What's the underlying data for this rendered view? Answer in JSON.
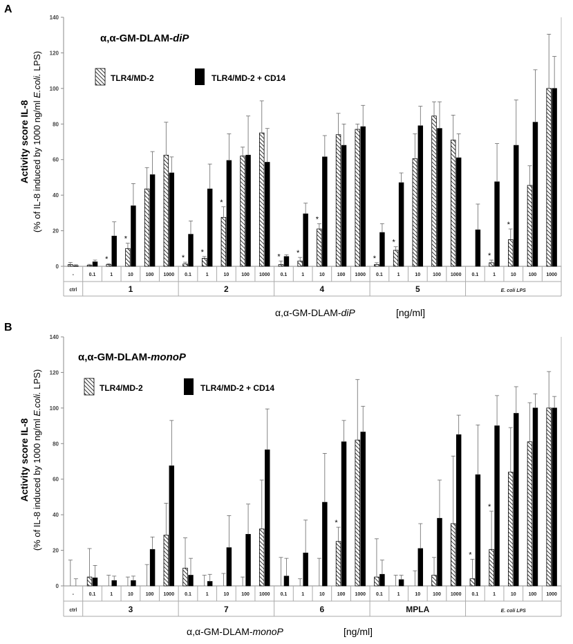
{
  "chart_data": [
    {
      "type": "bar",
      "panel": "A",
      "title": "α,α-GM-DLAM-diP",
      "title_plain": "α,α-GM-DLAM-",
      "title_italic": "diP",
      "ylabel_line1": "Activity score IL-8",
      "ylabel_line2_pre": "(% of IL-8 induced by 1000 ng/ml ",
      "ylabel_line2_ital": "E.coli.",
      "ylabel_line2_post": " LPS)",
      "xlabel_plain": "α,α-GM-DLAM-",
      "xlabel_italic": "diP",
      "xlabel_unit": "[ng/ml]",
      "ylim": [
        0,
        140
      ],
      "yticks": [
        "0",
        "20",
        "40",
        "60",
        "80",
        "100",
        "120",
        "140"
      ],
      "legend": [
        "TLR4/MD-2",
        "TLR4/MD-2 + CD14"
      ],
      "control": {
        "label": "-",
        "group": "ctrl",
        "values": [
          1,
          0.3
        ],
        "errors": [
          1.2,
          0.6
        ]
      },
      "groups": [
        {
          "label": "1",
          "italic": false,
          "doses": [
            "0.1",
            "1",
            "10",
            "100",
            "1000"
          ],
          "md2": [
            0.6,
            1,
            10,
            43.5,
            62.5
          ],
          "md2_err": [
            0.5,
            0.5,
            3,
            12,
            18.5
          ],
          "cd14": [
            2.5,
            17,
            34,
            51.5,
            52.5
          ],
          "cd14_err": [
            1,
            8,
            12.5,
            13,
            9
          ],
          "stars": [
            false,
            true,
            true,
            false,
            false
          ]
        },
        {
          "label": "2",
          "italic": false,
          "doses": [
            "0.1",
            "1",
            "10",
            "100",
            "1000"
          ],
          "md2": [
            1.3,
            4.5,
            27.5,
            62,
            75
          ],
          "md2_err": [
            1,
            1,
            6,
            5,
            18
          ],
          "cd14": [
            18,
            43.5,
            59.5,
            62.5,
            58.5
          ],
          "cd14_err": [
            7.5,
            14,
            15,
            22,
            19
          ],
          "stars": [
            true,
            true,
            true,
            false,
            false
          ]
        },
        {
          "label": "4",
          "italic": false,
          "doses": [
            "0.1",
            "1",
            "10",
            "100",
            "1000"
          ],
          "md2": [
            1,
            3,
            21,
            74,
            77
          ],
          "md2_err": [
            2,
            2,
            3,
            12,
            3
          ],
          "cd14": [
            5.5,
            29.5,
            61.5,
            68,
            78.5
          ],
          "cd14_err": [
            1,
            6,
            12,
            12,
            12
          ],
          "stars": [
            true,
            true,
            true,
            false,
            false
          ]
        },
        {
          "label": "5",
          "italic": false,
          "doses": [
            "0.1",
            "1",
            "10",
            "100",
            "1000"
          ],
          "md2": [
            1,
            9,
            60.5,
            84.5,
            71
          ],
          "md2_err": [
            1,
            2,
            14,
            8,
            14
          ],
          "cd14": [
            19,
            47,
            79,
            77.5,
            61
          ],
          "cd14_err": [
            5,
            5.5,
            11,
            15,
            13.5
          ],
          "stars": [
            true,
            true,
            false,
            false,
            false
          ]
        },
        {
          "label": "E. coli  LPS",
          "italic": true,
          "doses": [
            "0.1",
            "1",
            "10",
            "100",
            "1000"
          ],
          "md2": [
            0,
            2,
            15,
            45.5,
            100
          ],
          "md2_err": [
            0,
            1.5,
            6,
            11,
            30.5
          ],
          "cd14": [
            20.5,
            47.5,
            68,
            81,
            100
          ],
          "cd14_err": [
            14.5,
            21.5,
            25.5,
            29.5,
            18
          ],
          "stars": [
            false,
            true,
            true,
            false,
            false
          ]
        }
      ]
    },
    {
      "type": "bar",
      "panel": "B",
      "title": "α,α-GM-DLAM-monoP",
      "title_plain": "α,α-GM-DLAM-",
      "title_italic": "monoP",
      "ylabel_line1": "Activity score IL-8",
      "ylabel_line2_pre": "(% of IL-8 induced by 1000 ng/ml ",
      "ylabel_line2_ital": "E.coli.",
      "ylabel_line2_post": " LPS)",
      "xlabel_plain": "α,α-GM-DLAM-",
      "xlabel_italic": "monoP",
      "xlabel_unit": "[ng/ml]",
      "ylim": [
        0,
        140
      ],
      "yticks": [
        "0",
        "20",
        "40",
        "60",
        "80",
        "100",
        "120",
        "140"
      ],
      "legend": [
        "TLR4/MD-2",
        "TLR4/MD-2 + CD14"
      ],
      "control": {
        "label": "-",
        "group": "ctrl",
        "values": [
          0,
          0
        ],
        "errors": [
          14.5,
          4
        ]
      },
      "groups": [
        {
          "label": "3",
          "italic": false,
          "doses": [
            "0.1",
            "1",
            "10",
            "100",
            "1000"
          ],
          "md2": [
            5,
            0,
            0,
            0,
            28.5
          ],
          "md2_err": [
            16,
            6,
            5,
            12,
            18
          ],
          "cd14": [
            4.5,
            3,
            3,
            20.5,
            67.5
          ],
          "cd14_err": [
            7,
            2.5,
            2.5,
            7,
            25.5
          ],
          "stars": [
            false,
            false,
            false,
            false,
            false
          ]
        },
        {
          "label": "7",
          "italic": false,
          "doses": [
            "0.1",
            "1",
            "10",
            "100",
            "1000"
          ],
          "md2": [
            10,
            0,
            0,
            0,
            32
          ],
          "md2_err": [
            17,
            6,
            7,
            5,
            27.5
          ],
          "cd14": [
            6,
            2.5,
            21.5,
            29,
            76.5
          ],
          "cd14_err": [
            9.5,
            4,
            18,
            17,
            23
          ],
          "stars": [
            false,
            false,
            false,
            false,
            false
          ]
        },
        {
          "label": "6",
          "italic": false,
          "doses": [
            "0.1",
            "1",
            "10",
            "100",
            "1000"
          ],
          "md2": [
            0,
            0,
            0,
            25,
            82
          ],
          "md2_err": [
            16,
            4,
            15.5,
            8,
            34
          ],
          "cd14": [
            5.5,
            18.5,
            47,
            81,
            86.5
          ],
          "cd14_err": [
            10,
            18.5,
            27.5,
            12,
            14.5
          ],
          "stars": [
            false,
            false,
            false,
            true,
            false
          ]
        },
        {
          "label": "MPLA",
          "italic": false,
          "doses": [
            "0.1",
            "1",
            "10",
            "100",
            "1000"
          ],
          "md2": [
            5,
            0,
            0,
            6,
            35
          ],
          "md2_err": [
            21.5,
            6,
            8.5,
            10,
            38
          ],
          "cd14": [
            6.5,
            3.5,
            21,
            38,
            85
          ],
          "cd14_err": [
            8,
            2.5,
            14,
            21.5,
            11
          ],
          "stars": [
            false,
            false,
            false,
            false,
            false
          ]
        },
        {
          "label": "E. coli  LPS",
          "italic": true,
          "doses": [
            "0.1",
            "1",
            "10",
            "100",
            "1000"
          ],
          "md2": [
            4,
            20.5,
            64,
            81,
            100
          ],
          "md2_err": [
            11,
            21.5,
            25,
            22,
            20.5
          ],
          "cd14": [
            62.5,
            90,
            97,
            100,
            100
          ],
          "cd14_err": [
            28,
            17,
            15,
            8,
            6.5
          ],
          "stars": [
            true,
            true,
            false,
            false,
            false
          ]
        }
      ]
    }
  ],
  "labels": {
    "panel_a": "A",
    "panel_b": "B",
    "ctrl": "ctrl",
    "star": "*"
  }
}
